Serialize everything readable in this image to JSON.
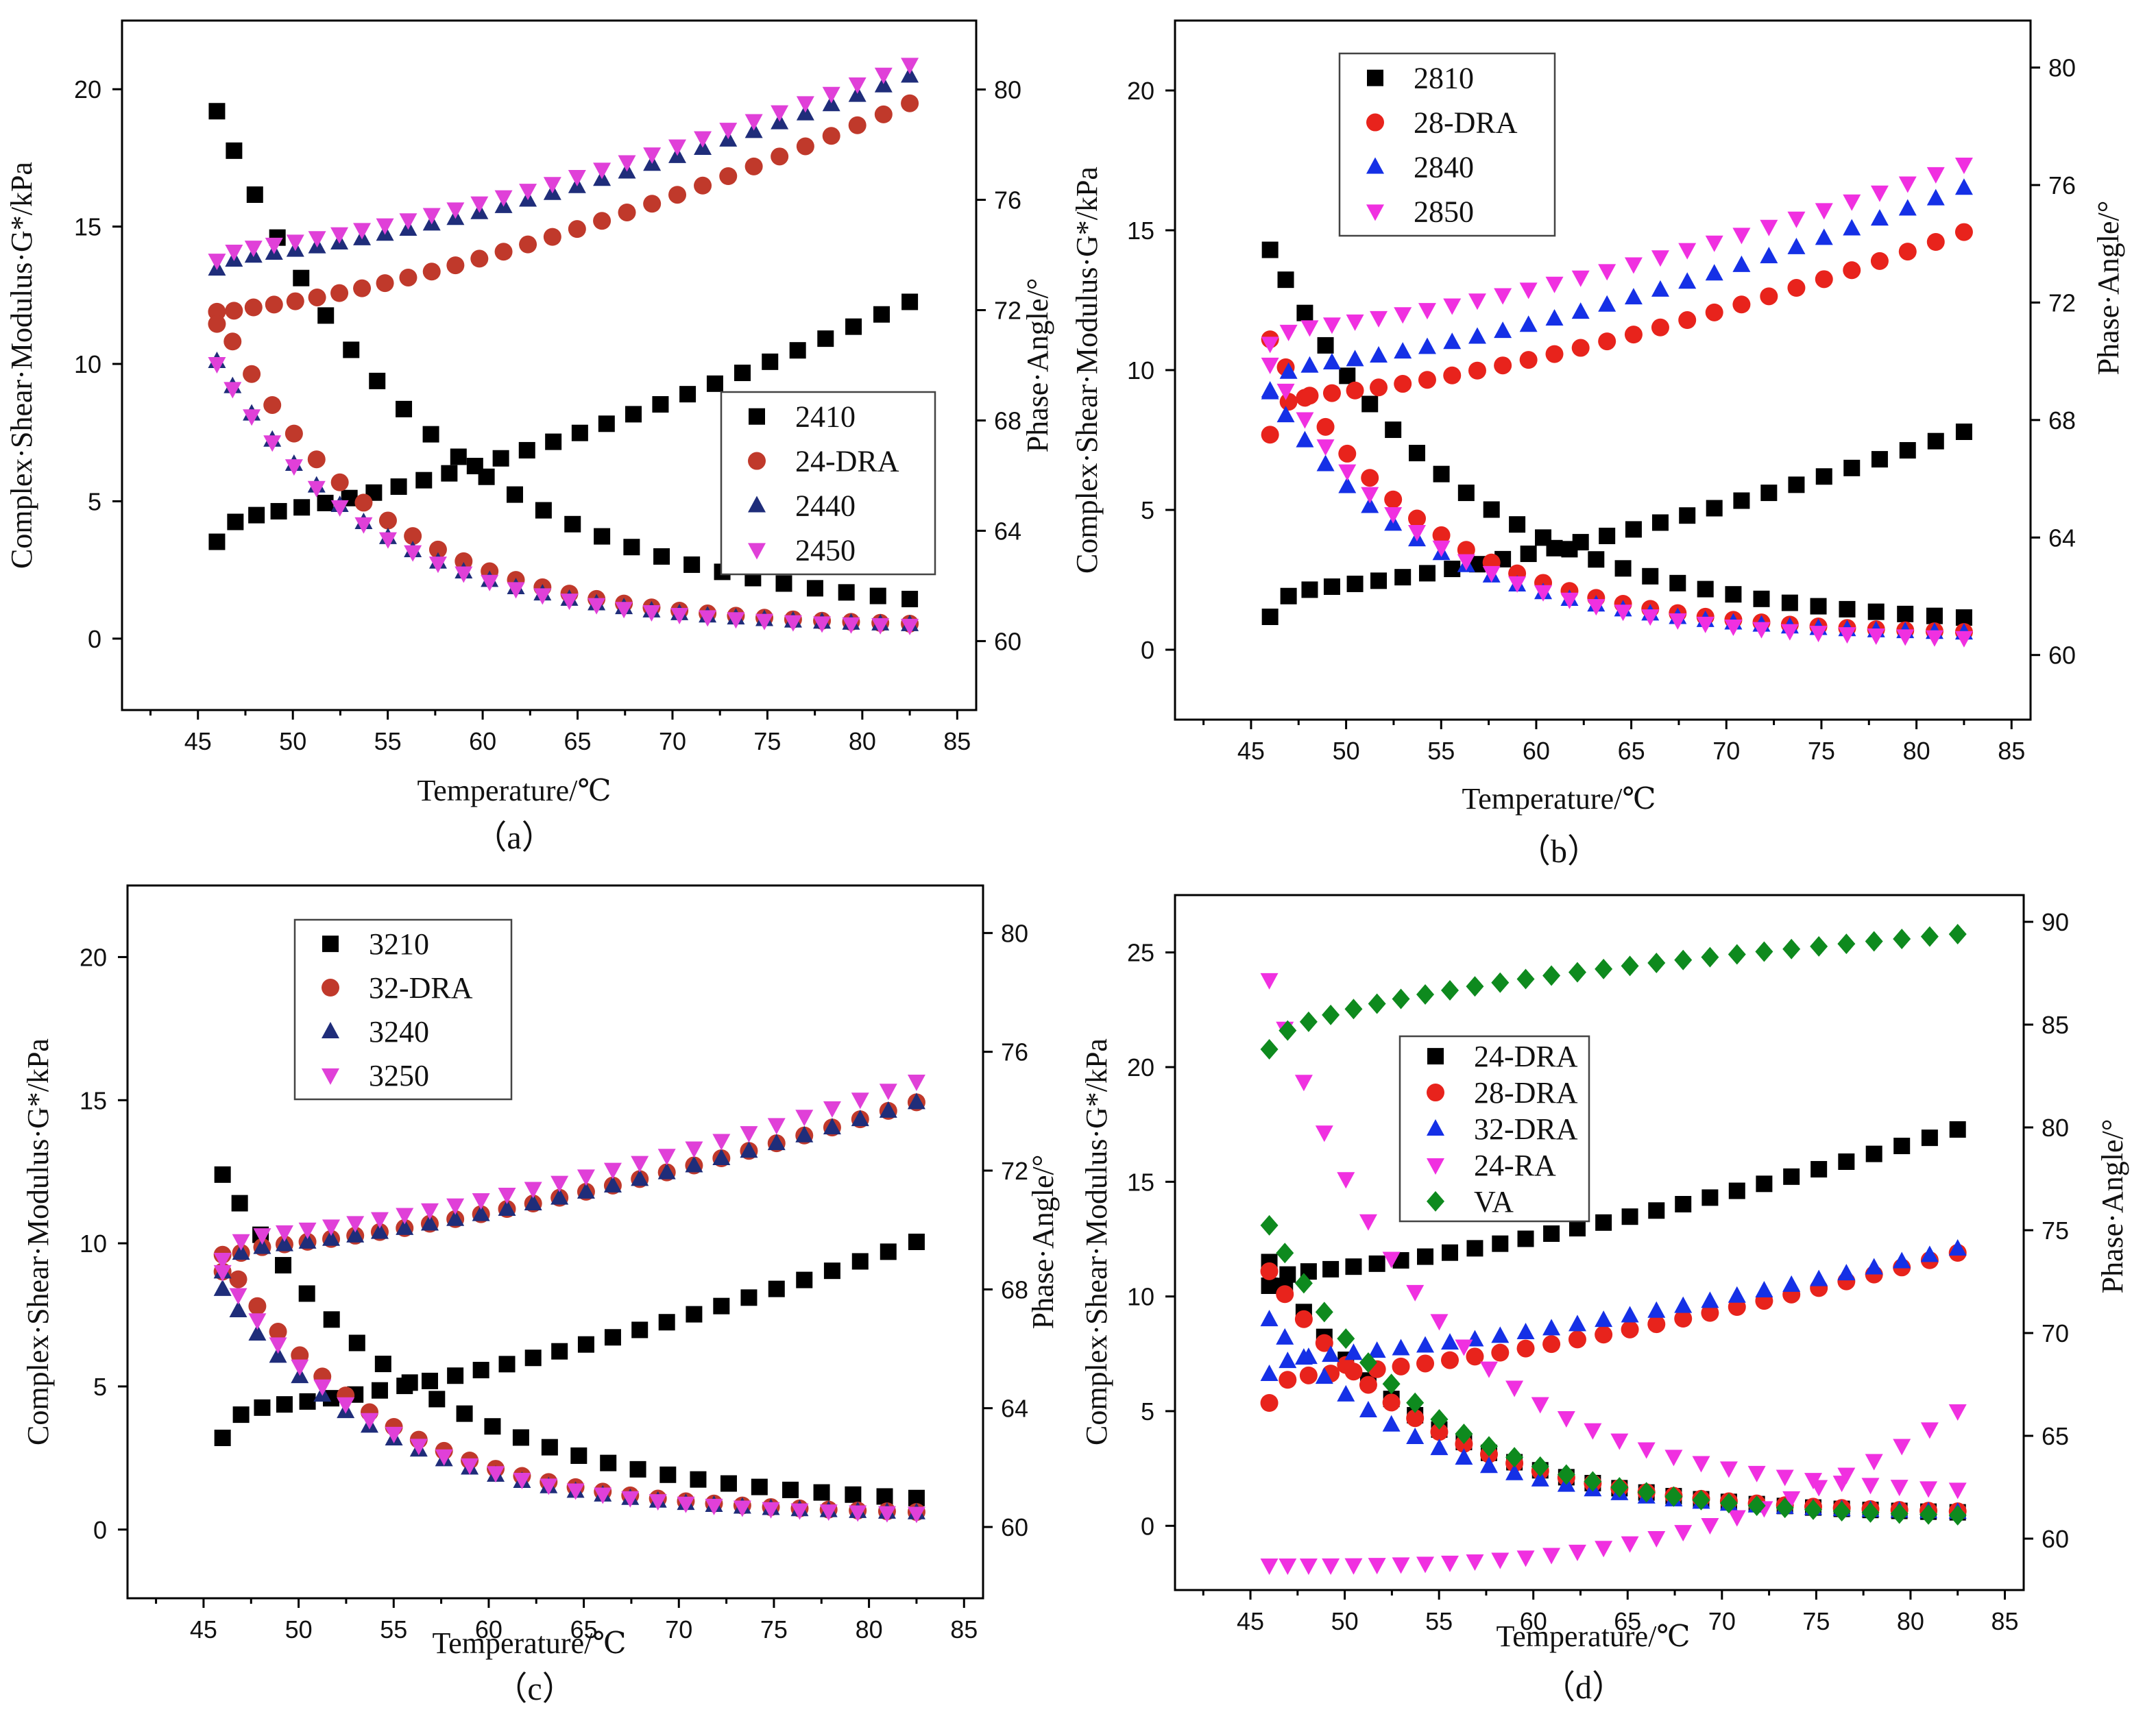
{
  "figure": {
    "x_title": "Temperature/℃",
    "y_left_title": "Complex·Shear·Modulus·G*/kPa",
    "y_right_title": "Phase·Angle/°"
  },
  "chart_data": [
    {
      "type": "scatter",
      "panel_label": "（a）",
      "x_ticks": [
        45,
        50,
        55,
        60,
        65,
        70,
        75,
        80,
        85
      ],
      "y_ticks": [
        0,
        5,
        10,
        15,
        20
      ],
      "y2_ticks": [
        60,
        64,
        68,
        72,
        76,
        80
      ],
      "xlim": [
        41,
        86
      ],
      "ylim": [
        -2.6,
        22.5
      ],
      "y2lim": [
        57.5,
        82.5
      ],
      "xlabel": "Temperature/℃",
      "ylabel": "Complex·Shear·Modulus·G*/kPa",
      "y2label": "Phase·Angle/°",
      "legend_position": "center-right",
      "series": [
        {
          "name": "2410",
          "marker": "square",
          "color": "#000000",
          "modulus": {
            "x0": 46,
            "x1": 82.5,
            "n": 26,
            "start": 19.2,
            "end": 0.75,
            "k": 0.09
          },
          "phase": {
            "x0": 46,
            "x1": 82.5,
            "n": 28,
            "start": 63.6,
            "end": 72.3,
            "sat": 0.9,
            "ramp": 1.5
          }
        },
        {
          "name": "24-DRA",
          "marker": "circle",
          "color": "#c0392b",
          "modulus": {
            "x0": 46,
            "x1": 82.5,
            "n": 28,
            "start": 11.9,
            "end": 0.4,
            "k": 0.12
          },
          "phase": {
            "x0": 46,
            "x1": 82.5,
            "n": 30,
            "start": 71.5,
            "end": 79.5,
            "sat": 0.5,
            "ramp": 2.5
          }
        },
        {
          "name": "2440",
          "marker": "triangle-up",
          "color": "#1f2d7a",
          "modulus": {
            "x0": 46,
            "x1": 82.5,
            "n": 28,
            "start": 10.1,
            "end": 0.4,
            "k": 0.12
          },
          "phase": {
            "x0": 46,
            "x1": 82.5,
            "n": 30,
            "start": 73.5,
            "end": 80.5,
            "sat": 0.4,
            "ramp": 1.5
          }
        },
        {
          "name": "2450",
          "marker": "triangle-down",
          "color": "#e040d8",
          "modulus": {
            "x0": 46,
            "x1": 82.5,
            "n": 28,
            "start": 10.0,
            "end": 0.35,
            "k": 0.12
          },
          "phase": {
            "x0": 46,
            "x1": 82.5,
            "n": 30,
            "start": 73.8,
            "end": 80.9,
            "sat": 0.4,
            "ramp": 1.5
          }
        }
      ]
    },
    {
      "type": "scatter",
      "panel_label": "（b）",
      "x_ticks": [
        45,
        50,
        55,
        60,
        65,
        70,
        75,
        80,
        85
      ],
      "y_ticks": [
        0,
        5,
        10,
        15,
        20
      ],
      "y2_ticks": [
        60,
        64,
        68,
        72,
        76,
        80
      ],
      "xlim": [
        41,
        86
      ],
      "ylim": [
        -2.5,
        22.5
      ],
      "y2lim": [
        57.8,
        81.6
      ],
      "xlabel": "Temperature/℃",
      "ylabel": "Complex·Shear·Modulus·G*/kPa",
      "y2label": "Phase·Angle/°",
      "legend_position": "top-left",
      "series": [
        {
          "name": "2810",
          "marker": "square",
          "color": "#000000",
          "modulus": {
            "x0": 46,
            "x1": 82.5,
            "n": 28,
            "start": 14.3,
            "end": 0.8,
            "k": 0.1
          },
          "phase": {
            "x0": 46,
            "x1": 82.5,
            "n": 28,
            "start": 61.3,
            "end": 67.6,
            "sat": 0.9,
            "ramp": 1.5
          }
        },
        {
          "name": "28-DRA",
          "marker": "circle",
          "color": "#e8231c",
          "modulus": {
            "x0": 46,
            "x1": 82.5,
            "n": 28,
            "start": 11.1,
            "end": 0.5,
            "k": 0.12
          },
          "phase": {
            "x0": 46,
            "x1": 82.5,
            "n": 28,
            "start": 67.5,
            "end": 74.4,
            "sat": 1.3,
            "ramp": 2.0
          }
        },
        {
          "name": "2840",
          "marker": "triangle-up",
          "color": "#1530e6",
          "modulus": {
            "x0": 46,
            "x1": 82.5,
            "n": 28,
            "start": 9.2,
            "end": 0.5,
            "k": 0.12
          },
          "phase": {
            "x0": 46,
            "x1": 82.5,
            "n": 28,
            "start": 69.0,
            "end": 75.9,
            "sat": 0.8,
            "ramp": 1.5
          }
        },
        {
          "name": "2850",
          "marker": "triangle-down",
          "color": "#f030e0",
          "modulus": {
            "x0": 46,
            "x1": 82.5,
            "n": 28,
            "start": 10.2,
            "end": 0.3,
            "k": 0.12
          },
          "phase": {
            "x0": 46,
            "x1": 82.5,
            "n": 28,
            "start": 70.6,
            "end": 76.7,
            "sat": 0.5,
            "ramp": 1.5
          }
        }
      ]
    },
    {
      "type": "scatter",
      "panel_label": "（c）",
      "x_ticks": [
        45,
        50,
        55,
        60,
        65,
        70,
        75,
        80,
        85
      ],
      "y_ticks": [
        0,
        5,
        10,
        15,
        20
      ],
      "y2_ticks": [
        60,
        64,
        68,
        72,
        76,
        80
      ],
      "xlim": [
        41,
        86
      ],
      "ylim": [
        -2.4,
        22.5
      ],
      "y2lim": [
        57.6,
        81.6
      ],
      "xlabel": "Temperature/℃",
      "ylabel": "Complex·Shear·Modulus·G*/kPa",
      "y2label": "Phase·Angle/°",
      "legend_position": "top-left",
      "series": [
        {
          "name": "3210",
          "marker": "square",
          "color": "#000000",
          "modulus": {
            "x0": 46,
            "x1": 82.5,
            "n": 26,
            "start": 12.4,
            "end": 0.8,
            "k": 0.1
          },
          "phase": {
            "x0": 46,
            "x1": 82.5,
            "n": 28,
            "start": 63.0,
            "end": 69.6,
            "sat": 1.0,
            "ramp": 1.5
          }
        },
        {
          "name": "32-DRA",
          "marker": "circle",
          "color": "#c0392b",
          "modulus": {
            "x0": 46,
            "x1": 82.5,
            "n": 28,
            "start": 9.6,
            "end": 0.5,
            "k": 0.12
          },
          "phase": {
            "x0": 46,
            "x1": 82.5,
            "n": 28,
            "start": 68.6,
            "end": 74.3,
            "sat": 0.8,
            "ramp": 1.5
          }
        },
        {
          "name": "3240",
          "marker": "triangle-up",
          "color": "#1f2d7a",
          "modulus": {
            "x0": 46,
            "x1": 82.5,
            "n": 28,
            "start": 8.4,
            "end": 0.5,
            "k": 0.12
          },
          "phase": {
            "x0": 46,
            "x1": 82.5,
            "n": 28,
            "start": 68.6,
            "end": 74.3,
            "sat": 0.8,
            "ramp": 1.5
          }
        },
        {
          "name": "3250",
          "marker": "triangle-down",
          "color": "#e040d8",
          "modulus": {
            "x0": 46,
            "x1": 82.5,
            "n": 28,
            "start": 9.0,
            "end": 0.45,
            "k": 0.12
          },
          "phase": {
            "x0": 46,
            "x1": 82.5,
            "n": 28,
            "start": 69.0,
            "end": 75.0,
            "sat": 0.8,
            "ramp": 1.5
          }
        }
      ]
    },
    {
      "type": "scatter",
      "panel_label": "（d）",
      "x_ticks": [
        45,
        50,
        55,
        60,
        65,
        70,
        75,
        80,
        85
      ],
      "y_ticks": [
        0,
        5,
        10,
        15,
        20,
        25
      ],
      "y2_ticks": [
        60,
        65,
        70,
        75,
        80,
        85,
        90
      ],
      "xlim": [
        41,
        86
      ],
      "ylim": [
        -2.8,
        27.5
      ],
      "y2lim": [
        57.5,
        91.3
      ],
      "xlabel": "Temperature/℃",
      "ylabel": "Complex·Shear·Modulus·G*/kPa",
      "y2label": "Phase·Angle/°",
      "legend_position": "upper-left",
      "series": [
        {
          "name": "24-DRA",
          "marker": "square",
          "color": "#000000",
          "modulus": {
            "x0": 46,
            "x1": 82.5,
            "n": 28,
            "start": 11.5,
            "end": 0.45,
            "k": 0.12
          },
          "phase": {
            "x0": 46,
            "x1": 82.5,
            "n": 28,
            "start": 72.3,
            "end": 79.9,
            "sat": 0.6,
            "ramp": 2.0
          }
        },
        {
          "name": "28-DRA",
          "marker": "circle",
          "color": "#e8231c",
          "modulus": {
            "x0": 46,
            "x1": 82.5,
            "n": 28,
            "start": 11.1,
            "end": 0.5,
            "k": 0.12
          },
          "phase": {
            "x0": 46,
            "x1": 82.5,
            "n": 28,
            "start": 66.6,
            "end": 73.9,
            "sat": 1.3,
            "ramp": 2.0
          }
        },
        {
          "name": "32-DRA",
          "marker": "triangle-up",
          "color": "#1530e6",
          "modulus": {
            "x0": 46,
            "x1": 82.5,
            "n": 28,
            "start": 9.0,
            "end": 0.5,
            "k": 0.12
          },
          "phase": {
            "x0": 46,
            "x1": 82.5,
            "n": 28,
            "start": 68.0,
            "end": 74.1,
            "sat": 0.8,
            "ramp": 1.5
          }
        },
        {
          "name": "24-RA",
          "marker": "triangle-down",
          "color": "#f030e0",
          "modulus": {
            "x0": 46,
            "x1": 82.5,
            "n": 28,
            "start": 23.8,
            "end": 1.3,
            "k": 0.12
          },
          "phase": {
            "x0": 46,
            "x1": 82.5,
            "n": 28,
            "start": 58.7,
            "end": 66.2,
            "sat": 0.0,
            "ramp": 1.0,
            "pow": 3
          }
        },
        {
          "name": "VA",
          "marker": "diamond",
          "color": "#0e8a1e",
          "modulus": {
            "x0": 46,
            "x1": 82.5,
            "n": 28,
            "start": 13.1,
            "end": 0.3,
            "k": 0.12
          },
          "phase": {
            "x0": 46,
            "x1": 82.5,
            "n": 28,
            "start": 83.8,
            "end": 89.4,
            "sat": 0.0,
            "ramp": 1.0,
            "pow": 0.5
          }
        }
      ]
    }
  ]
}
